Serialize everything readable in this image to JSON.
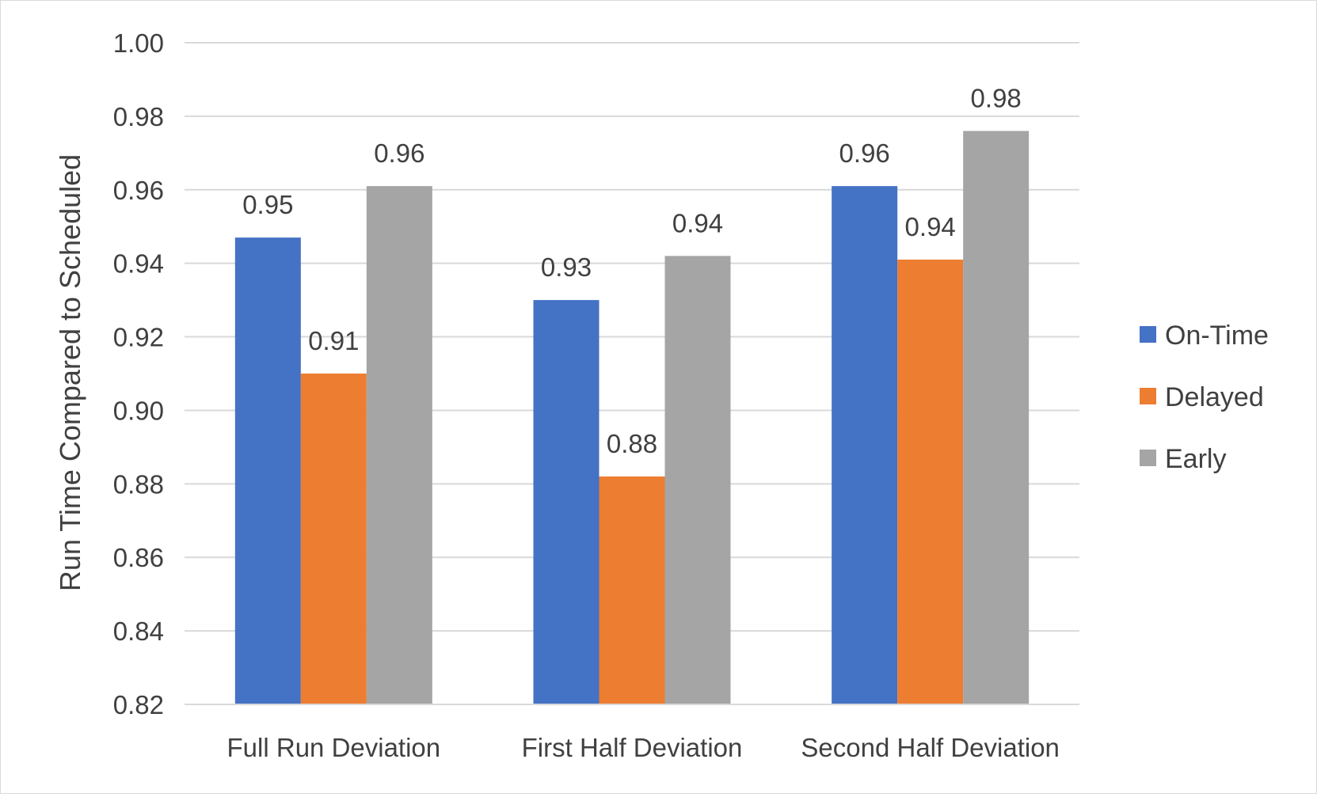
{
  "chart_data": {
    "type": "bar",
    "title": "",
    "xlabel": "",
    "ylabel": "Run Time Compared to Scheduled",
    "ylim": [
      0.82,
      1.0
    ],
    "ytick_step": 0.02,
    "ytick_labels": [
      "0.82",
      "0.84",
      "0.86",
      "0.88",
      "0.90",
      "0.92",
      "0.94",
      "0.96",
      "0.98",
      "1.00"
    ],
    "grid": true,
    "legend_position": "right",
    "categories": [
      "Full Run Deviation",
      "First Half Deviation",
      "Second Half Deviation"
    ],
    "series": [
      {
        "name": "On-Time",
        "color": "#4472c4",
        "values": [
          0.947,
          0.93,
          0.961
        ],
        "labels": [
          "0.95",
          "0.93",
          "0.96"
        ]
      },
      {
        "name": "Delayed",
        "color": "#ed7d31",
        "values": [
          0.91,
          0.882,
          0.941
        ],
        "labels": [
          "0.91",
          "0.88",
          "0.94"
        ]
      },
      {
        "name": "Early",
        "color": "#a5a5a5",
        "values": [
          0.961,
          0.942,
          0.976
        ],
        "labels": [
          "0.96",
          "0.94",
          "0.98"
        ]
      }
    ]
  }
}
